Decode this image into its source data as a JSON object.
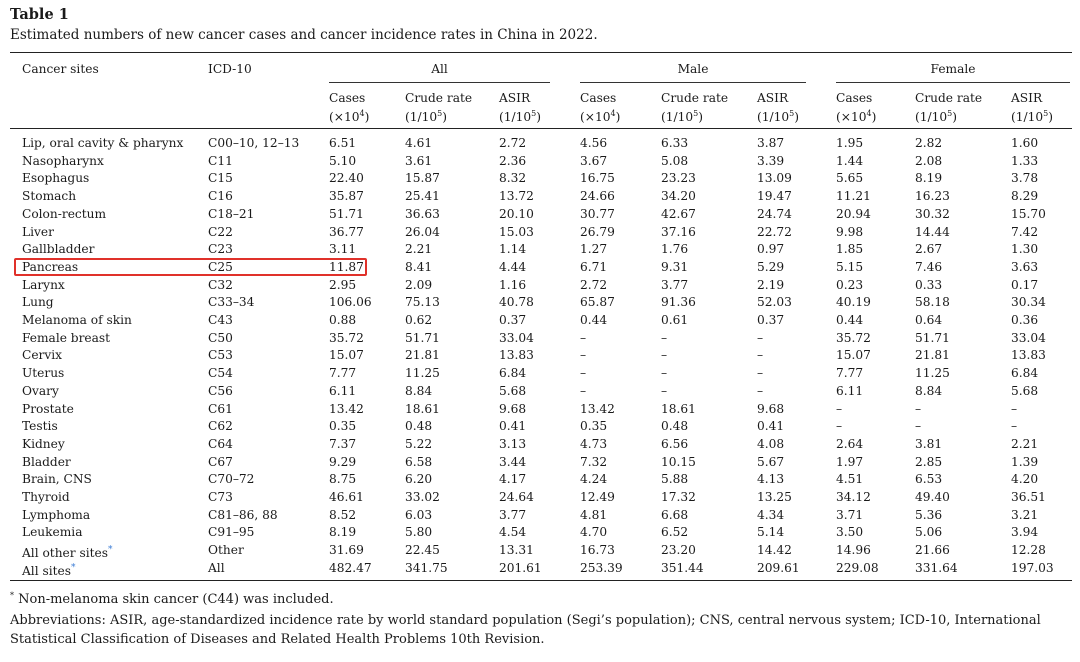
{
  "caption": {
    "label": "Table 1",
    "text": "Estimated numbers of new cancer cases and cancer incidence rates in China in 2022."
  },
  "header": {
    "site": "Cancer sites",
    "icd": "ICD-10",
    "groups": [
      "All",
      "Male",
      "Female"
    ],
    "sub": [
      {
        "l1": "Cases",
        "l2a": "(×10",
        "sup": "4",
        "l2b": ")"
      },
      {
        "l1": "Crude rate",
        "l2a": "(1/10",
        "sup": "5",
        "l2b": ")"
      },
      {
        "l1": "ASIR",
        "l2a": "(1/10",
        "sup": "5",
        "l2b": ")"
      }
    ]
  },
  "rows": [
    {
      "site": "Lip, oral cavity & pharynx",
      "icd": "C00–10, 12–13",
      "v": [
        "6.51",
        "4.61",
        "2.72",
        "4.56",
        "6.33",
        "3.87",
        "1.95",
        "2.82",
        "1.60"
      ]
    },
    {
      "site": "Nasopharynx",
      "icd": "C11",
      "v": [
        "5.10",
        "3.61",
        "2.36",
        "3.67",
        "5.08",
        "3.39",
        "1.44",
        "2.08",
        "1.33"
      ]
    },
    {
      "site": "Esophagus",
      "icd": "C15",
      "v": [
        "22.40",
        "15.87",
        "8.32",
        "16.75",
        "23.23",
        "13.09",
        "5.65",
        "8.19",
        "3.78"
      ]
    },
    {
      "site": "Stomach",
      "icd": "C16",
      "v": [
        "35.87",
        "25.41",
        "13.72",
        "24.66",
        "34.20",
        "19.47",
        "11.21",
        "16.23",
        "8.29"
      ]
    },
    {
      "site": "Colon-rectum",
      "icd": "C18–21",
      "v": [
        "51.71",
        "36.63",
        "20.10",
        "30.77",
        "42.67",
        "24.74",
        "20.94",
        "30.32",
        "15.70"
      ]
    },
    {
      "site": "Liver",
      "icd": "C22",
      "v": [
        "36.77",
        "26.04",
        "15.03",
        "26.79",
        "37.16",
        "22.72",
        "9.98",
        "14.44",
        "7.42"
      ]
    },
    {
      "site": "Gallbladder",
      "icd": "C23",
      "v": [
        "3.11",
        "2.21",
        "1.14",
        "1.27",
        "1.76",
        "0.97",
        "1.85",
        "2.67",
        "1.30"
      ]
    },
    {
      "site": "Pancreas",
      "icd": "C25",
      "v": [
        "11.87",
        "8.41",
        "4.44",
        "6.71",
        "9.31",
        "5.29",
        "5.15",
        "7.46",
        "3.63"
      ]
    },
    {
      "site": "Larynx",
      "icd": "C32",
      "v": [
        "2.95",
        "2.09",
        "1.16",
        "2.72",
        "3.77",
        "2.19",
        "0.23",
        "0.33",
        "0.17"
      ]
    },
    {
      "site": "Lung",
      "icd": "C33–34",
      "v": [
        "106.06",
        "75.13",
        "40.78",
        "65.87",
        "91.36",
        "52.03",
        "40.19",
        "58.18",
        "30.34"
      ]
    },
    {
      "site": "Melanoma of skin",
      "icd": "C43",
      "v": [
        "0.88",
        "0.62",
        "0.37",
        "0.44",
        "0.61",
        "0.37",
        "0.44",
        "0.64",
        "0.36"
      ]
    },
    {
      "site": "Female breast",
      "icd": "C50",
      "v": [
        "35.72",
        "51.71",
        "33.04",
        "–",
        "–",
        "–",
        "35.72",
        "51.71",
        "33.04"
      ]
    },
    {
      "site": "Cervix",
      "icd": "C53",
      "v": [
        "15.07",
        "21.81",
        "13.83",
        "–",
        "–",
        "–",
        "15.07",
        "21.81",
        "13.83"
      ]
    },
    {
      "site": "Uterus",
      "icd": "C54",
      "v": [
        "7.77",
        "11.25",
        "6.84",
        "–",
        "–",
        "–",
        "7.77",
        "11.25",
        "6.84"
      ]
    },
    {
      "site": "Ovary",
      "icd": "C56",
      "v": [
        "6.11",
        "8.84",
        "5.68",
        "–",
        "–",
        "–",
        "6.11",
        "8.84",
        "5.68"
      ]
    },
    {
      "site": "Prostate",
      "icd": "C61",
      "v": [
        "13.42",
        "18.61",
        "9.68",
        "13.42",
        "18.61",
        "9.68",
        "–",
        "–",
        "–"
      ]
    },
    {
      "site": "Testis",
      "icd": "C62",
      "v": [
        "0.35",
        "0.48",
        "0.41",
        "0.35",
        "0.48",
        "0.41",
        "–",
        "–",
        "–"
      ]
    },
    {
      "site": "Kidney",
      "icd": "C64",
      "v": [
        "7.37",
        "5.22",
        "3.13",
        "4.73",
        "6.56",
        "4.08",
        "2.64",
        "3.81",
        "2.21"
      ]
    },
    {
      "site": "Bladder",
      "icd": "C67",
      "v": [
        "9.29",
        "6.58",
        "3.44",
        "7.32",
        "10.15",
        "5.67",
        "1.97",
        "2.85",
        "1.39"
      ]
    },
    {
      "site": "Brain, CNS",
      "icd": "C70–72",
      "v": [
        "8.75",
        "6.20",
        "4.17",
        "4.24",
        "5.88",
        "4.13",
        "4.51",
        "6.53",
        "4.20"
      ]
    },
    {
      "site": "Thyroid",
      "icd": "C73",
      "v": [
        "46.61",
        "33.02",
        "24.64",
        "12.49",
        "17.32",
        "13.25",
        "34.12",
        "49.40",
        "36.51"
      ]
    },
    {
      "site": "Lymphoma",
      "icd": "C81–86, 88",
      "v": [
        "8.52",
        "6.03",
        "3.77",
        "4.81",
        "6.68",
        "4.34",
        "3.71",
        "5.36",
        "3.21"
      ]
    },
    {
      "site": "Leukemia",
      "icd": "C91–95",
      "v": [
        "8.19",
        "5.80",
        "4.54",
        "4.70",
        "6.52",
        "5.14",
        "3.50",
        "5.06",
        "3.94"
      ]
    },
    {
      "site": "All other sites",
      "icd": "Other",
      "star": "*",
      "v": [
        "31.69",
        "22.45",
        "13.31",
        "16.73",
        "23.20",
        "14.42",
        "14.96",
        "21.66",
        "12.28"
      ]
    },
    {
      "site": "All sites",
      "icd": "All",
      "star": "*",
      "v": [
        "482.47",
        "341.75",
        "201.61",
        "253.39",
        "351.44",
        "209.61",
        "229.08",
        "331.64",
        "197.03"
      ]
    }
  ],
  "footnotes": {
    "fn1_mark": "*",
    "fn1_text": "Non-melanoma skin cancer (C44) was included.",
    "fn2_text": "Abbreviations: ASIR, age-standardized incidence rate by world standard population (Segi’s population); CNS, central nervous system; ICD-10, International Statistical Classification of Diseases and Related Health Problems 10th Revision."
  },
  "colors": {
    "highlight": "#e0312a",
    "footnote_mark": "#3a7bd5"
  }
}
